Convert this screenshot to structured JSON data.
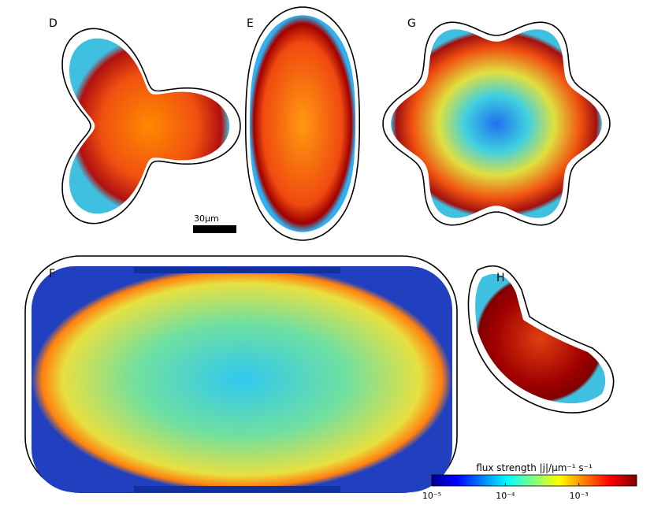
{
  "panels": {
    "D": "D",
    "E": "E",
    "G": "G",
    "F": "F",
    "H": "H"
  },
  "scale_bar": "30μm",
  "colorbar": {
    "label": "flux strength |j|/μm⁻¹ s⁻¹",
    "log": true,
    "lim": [
      1e-05,
      0.0061
    ],
    "ticks": [
      {
        "value": 1e-05,
        "label": "10⁻⁵"
      },
      {
        "value": 0.0001,
        "label": "10⁻⁴"
      },
      {
        "value": 0.001,
        "label": "10⁻³"
      }
    ]
  }
}
